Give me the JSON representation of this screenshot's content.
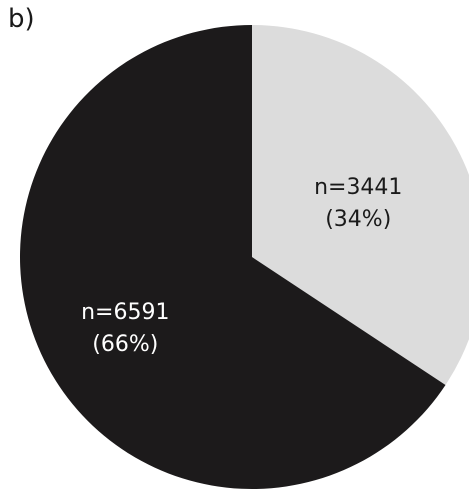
{
  "panel_label": "b)",
  "chart_data": {
    "type": "pie",
    "slices": [
      {
        "value": 3441,
        "percent": 34,
        "count_label": "n=3441",
        "percent_label": "(34%)",
        "color": "#dcdcdc",
        "text_color": "#1a1a1a"
      },
      {
        "value": 6591,
        "percent": 66,
        "count_label": "n=6591",
        "percent_label": "(66%)",
        "color": "#1c1a1b",
        "text_color": "#ffffff"
      }
    ]
  }
}
